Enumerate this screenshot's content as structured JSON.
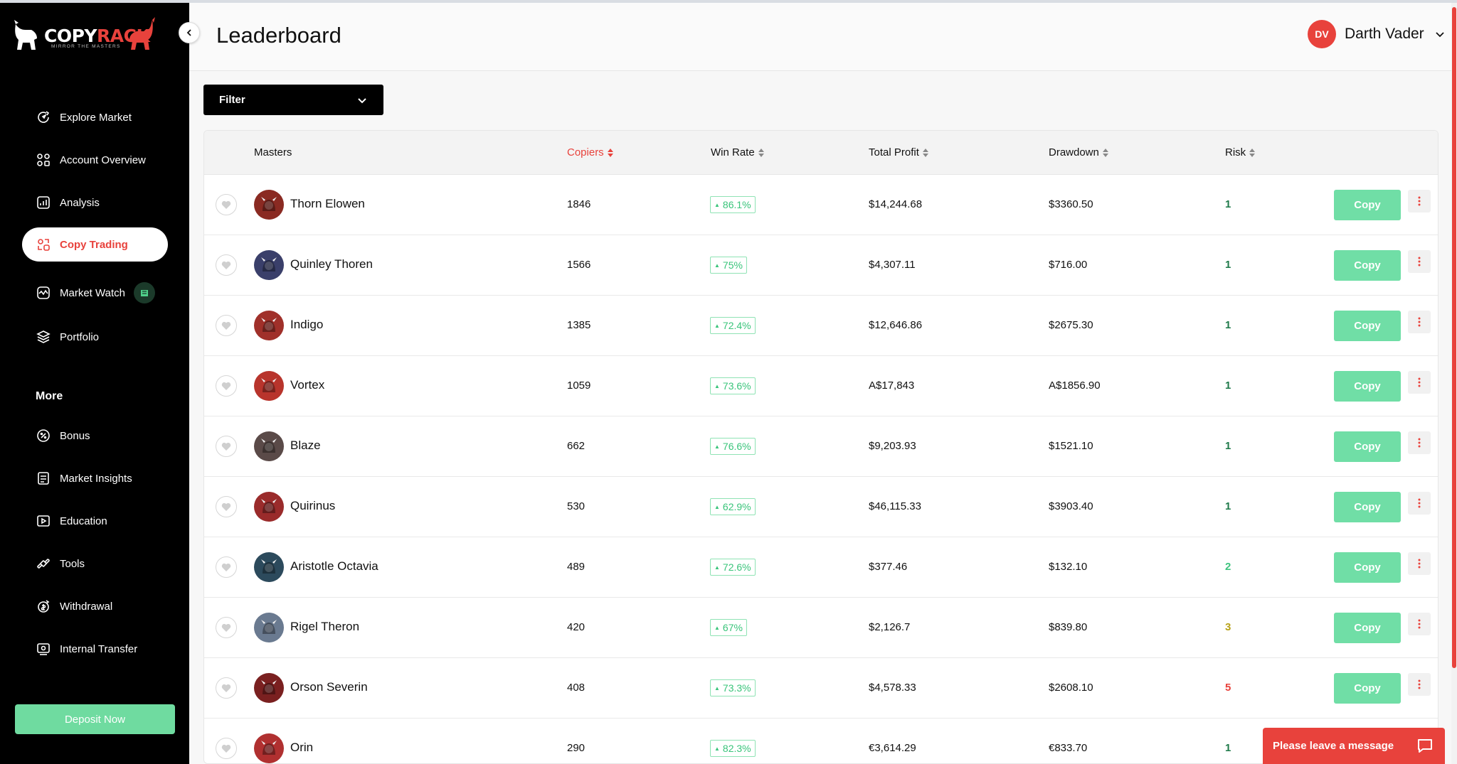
{
  "brand": {
    "name_white": "COPY",
    "name_red": "RACK",
    "tagline": "MIRROR THE MASTERS"
  },
  "sidebar": {
    "items": [
      {
        "label": "Explore Market",
        "icon": "explore-icon",
        "active": false
      },
      {
        "label": "Account Overview",
        "icon": "grid-icon",
        "active": false
      },
      {
        "label": "Analysis",
        "icon": "analysis-icon",
        "active": false
      },
      {
        "label": "Copy Trading",
        "icon": "copy-trading-icon",
        "active": true
      },
      {
        "label": "Market Watch",
        "icon": "market-watch-icon",
        "active": false
      },
      {
        "label": "Portfolio",
        "icon": "layers-icon",
        "active": false
      }
    ],
    "more_title": "More",
    "more_items": [
      {
        "label": "Bonus",
        "icon": "bonus-icon"
      },
      {
        "label": "Market Insights",
        "icon": "insights-icon"
      },
      {
        "label": "Education",
        "icon": "education-icon"
      },
      {
        "label": "Tools",
        "icon": "tools-icon"
      },
      {
        "label": "Withdrawal",
        "icon": "withdrawal-icon"
      },
      {
        "label": "Internal Transfer",
        "icon": "transfer-icon"
      }
    ],
    "deposit_label": "Deposit Now"
  },
  "header": {
    "title": "Leaderboard",
    "user_initials": "DV",
    "user_name": "Darth Vader"
  },
  "filter": {
    "label": "Filter"
  },
  "table": {
    "columns": {
      "masters": "Masters",
      "copiers": "Copiers",
      "win_rate": "Win Rate",
      "total_profit": "Total Profit",
      "drawdown": "Drawdown",
      "risk": "Risk"
    },
    "copy_label": "Copy",
    "rows": [
      {
        "name": "Thorn Elowen",
        "copiers": "1846",
        "win_rate": "86.1%",
        "total_profit": "$14,244.68",
        "drawdown": "$3360.50",
        "risk": "1",
        "risk_color": "#1f7a4a",
        "avatar_color": "#8a2a22"
      },
      {
        "name": "Quinley Thoren",
        "copiers": "1566",
        "win_rate": "75%",
        "total_profit": "$4,307.11",
        "drawdown": "$716.00",
        "risk": "1",
        "risk_color": "#1f7a4a",
        "avatar_color": "#3a3f6a"
      },
      {
        "name": "Indigo",
        "copiers": "1385",
        "win_rate": "72.4%",
        "total_profit": "$12,646.86",
        "drawdown": "$2675.30",
        "risk": "1",
        "risk_color": "#1f7a4a",
        "avatar_color": "#a0302a"
      },
      {
        "name": "Vortex",
        "copiers": "1059",
        "win_rate": "73.6%",
        "total_profit": "A$17,843",
        "drawdown": "A$1856.90",
        "risk": "1",
        "risk_color": "#1f7a4a",
        "avatar_color": "#b8342c"
      },
      {
        "name": "Blaze",
        "copiers": "662",
        "win_rate": "76.6%",
        "total_profit": "$9,203.93",
        "drawdown": "$1521.10",
        "risk": "1",
        "risk_color": "#1f7a4a",
        "avatar_color": "#5a4a48"
      },
      {
        "name": "Quirinus",
        "copiers": "530",
        "win_rate": "62.9%",
        "total_profit": "$46,115.33",
        "drawdown": "$3903.40",
        "risk": "1",
        "risk_color": "#1f7a4a",
        "avatar_color": "#9a2b2b"
      },
      {
        "name": "Aristotle Octavia",
        "copiers": "489",
        "win_rate": "72.6%",
        "total_profit": "$377.46",
        "drawdown": "$132.10",
        "risk": "2",
        "risk_color": "#3fc47f",
        "avatar_color": "#2c4a5c"
      },
      {
        "name": "Rigel Theron",
        "copiers": "420",
        "win_rate": "67%",
        "total_profit": "$2,126.7",
        "drawdown": "$839.80",
        "risk": "3",
        "risk_color": "#b8a21a",
        "avatar_color": "#6a7a90"
      },
      {
        "name": "Orson Severin",
        "copiers": "408",
        "win_rate": "73.3%",
        "total_profit": "$4,578.33",
        "drawdown": "$2608.10",
        "risk": "5",
        "risk_color": "#e8423c",
        "avatar_color": "#7a2020"
      },
      {
        "name": "Orin",
        "copiers": "290",
        "win_rate": "82.3%",
        "total_profit": "€3,614.29",
        "drawdown": "€833.70",
        "risk": "1",
        "risk_color": "#1f7a4a",
        "avatar_color": "#b03030"
      }
    ]
  },
  "chat": {
    "label": "Please leave a message"
  },
  "colors": {
    "accent": "#e8423c",
    "green": "#70dea6",
    "sidebar_bg": "#000000"
  }
}
